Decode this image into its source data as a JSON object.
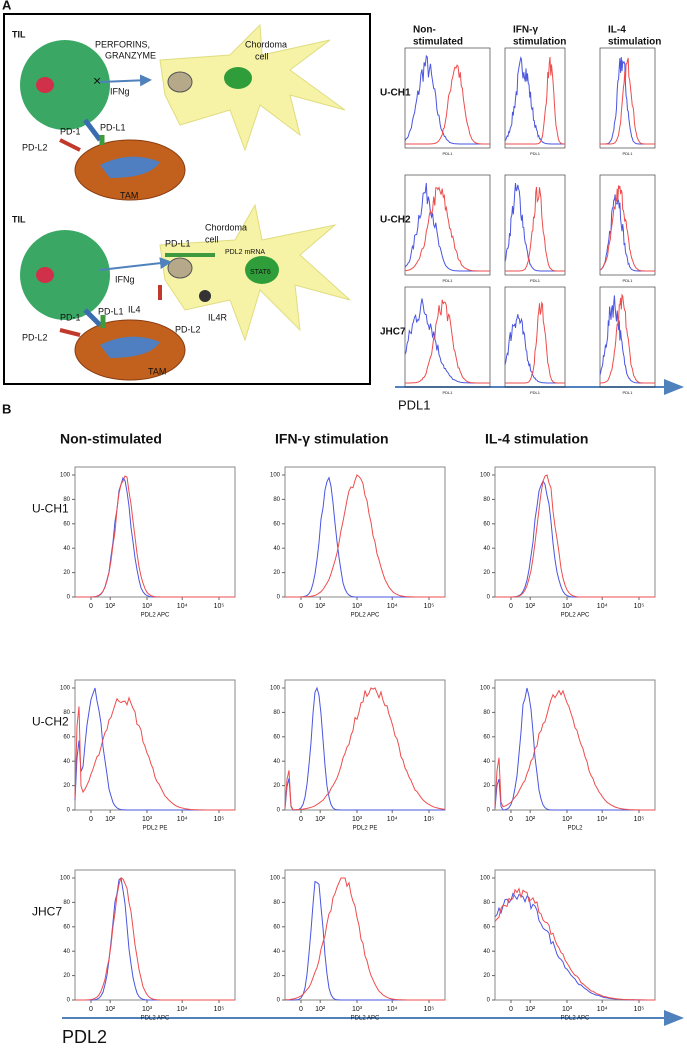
{
  "panel_a": {
    "label": "A",
    "diagram": {
      "top": {
        "til": "TIL",
        "perforins": "PERFORINS,",
        "granzyme": "GRANZYME",
        "ifng": "IFNg",
        "chordoma": "Chordoma",
        "cell": "cell",
        "pd1": "PD-1",
        "pdl1": "PD-L1",
        "pdl2": "PD-L2",
        "tam": "TAM"
      },
      "bottom": {
        "til": "TIL",
        "ifng": "IFNg",
        "pdl1_top": "PD-L1",
        "chordoma": "Chordoma",
        "cell": "cell",
        "mrna": "PDL2 mRNA",
        "stat6": "STAT6",
        "pd1": "PD-1",
        "pdl1": "PD-L1",
        "il4": "IL4",
        "il4r": "IL4R",
        "pdl2_cell": "PD-L2",
        "pdl2": "PD-L2",
        "tam": "TAM"
      }
    },
    "columns": [
      [
        "Non-",
        "stimulated"
      ],
      [
        "IFN-γ",
        "stimulation"
      ],
      [
        "IL-4",
        "stimulation"
      ]
    ],
    "rows": [
      "U-CH1",
      "U-CH2",
      "JHC7"
    ],
    "plot_axis_label": "PDL1",
    "axis_label": "PDL1"
  },
  "panel_b": {
    "label": "B",
    "columns": [
      "Non-stimulated",
      "IFN-γ stimulation",
      "IL-4 stimulation"
    ],
    "rows": [
      "U-CH1",
      "U-CH2",
      "JHC7"
    ],
    "yticks": [
      "0",
      "20",
      "40",
      "60",
      "80",
      "100"
    ],
    "xticks": [
      "0",
      "10²",
      "10³",
      "10⁴",
      "10⁵"
    ],
    "x_labels": [
      [
        "PDL2 APC",
        "PDL2 APC",
        "PDL2 APC"
      ],
      [
        "PDL2 PE",
        "PDL2 PE",
        "PDL2"
      ],
      [
        "PDL2 APC",
        "PDL2 APC",
        "PDL2 APC"
      ]
    ],
    "axis_label": "PDL2"
  }
}
